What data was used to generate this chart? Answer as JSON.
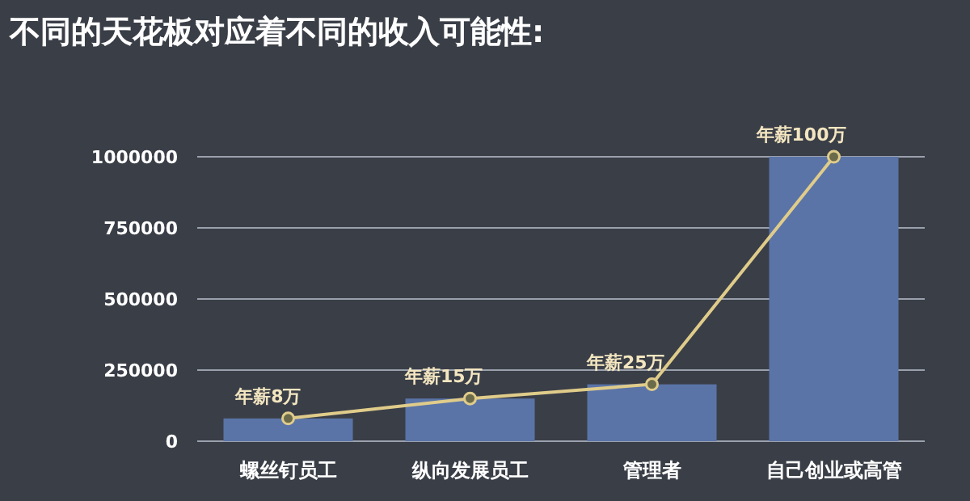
{
  "chart_data": {
    "type": "bar",
    "title": "不同的天花板对应着不同的收入可能性:",
    "categories": [
      "螺丝钉员工",
      "纵向发展员工",
      "管理者",
      "自己创业或高管"
    ],
    "series": [
      {
        "color": "#5a74a8",
        "values": [
          80000,
          150000,
          200000,
          1000000
        ]
      },
      {
        "type": "line",
        "color": "#e0cc8a",
        "marker": "circle",
        "values": [
          80000,
          150000,
          200000,
          1000000
        ],
        "value_labels": [
          "年薪8万",
          "年薪15万",
          "年薪25万",
          "年薪100万"
        ]
      }
    ],
    "ylim": [
      0,
      1000000
    ],
    "yticks": [
      0,
      250000,
      500000,
      750000,
      1000000
    ],
    "grid": "y"
  }
}
